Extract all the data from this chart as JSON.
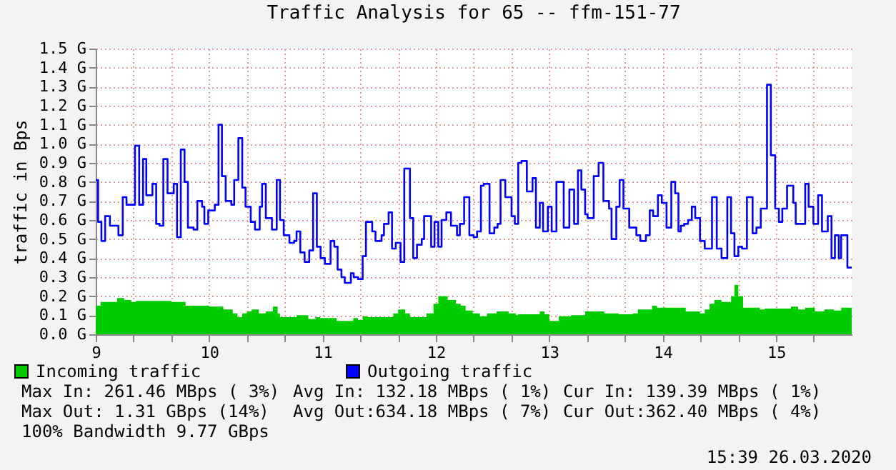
{
  "chart_data": {
    "type": "step",
    "title": "Traffic Analysis for 65 -- ffm-151-77",
    "ylabel": "traffic in Bps",
    "xlim": [
      9,
      15.667
    ],
    "xticks": [
      9,
      {
        "value": 9.333,
        "label": null
      },
      {
        "value": 9.667,
        "label": null
      },
      10,
      {
        "value": 10.333,
        "label": null
      },
      {
        "value": 10.667,
        "label": null
      },
      11,
      {
        "value": 11.333,
        "label": null
      },
      {
        "value": 11.667,
        "label": null
      },
      12,
      {
        "value": 12.333,
        "label": null
      },
      {
        "value": 12.667,
        "label": null
      },
      13,
      {
        "value": 13.333,
        "label": null
      },
      {
        "value": 13.667,
        "label": null
      },
      14,
      {
        "value": 14.333,
        "label": null
      },
      {
        "value": 14.667,
        "label": null
      },
      15,
      {
        "value": 15.333,
        "label": null
      }
    ],
    "ylim": [
      0,
      1.5
    ],
    "yticks": [
      {
        "value": 0,
        "label": "0.0 G"
      },
      {
        "value": 0.1,
        "label": "0.1 G"
      },
      {
        "value": 0.2,
        "label": "0.2 G"
      },
      {
        "value": 0.3,
        "label": "0.3 G"
      },
      {
        "value": 0.4,
        "label": "0.4 G"
      },
      {
        "value": 0.5,
        "label": "0.5 G"
      },
      {
        "value": 0.6,
        "label": "0.6 G"
      },
      {
        "value": 0.7,
        "label": "0.7 G"
      },
      {
        "value": 0.8,
        "label": "0.8 G"
      },
      {
        "value": 0.9,
        "label": "0.9 G"
      },
      {
        "value": 1.0,
        "label": "1.0 G"
      },
      {
        "value": 1.1,
        "label": "1.1 G"
      },
      {
        "value": 1.2,
        "label": "1.2 G"
      },
      {
        "value": 1.3,
        "label": "1.3 G"
      },
      {
        "value": 1.4,
        "label": "1.4 G"
      },
      {
        "value": 1.5,
        "label": "1.5 G"
      }
    ],
    "grid": true,
    "legend": "bottom",
    "series": [
      {
        "name": "Incoming traffic",
        "type": "area",
        "color": "#00cc00",
        "x": [
          9.0,
          9.042,
          9.188,
          9.25,
          9.313,
          9.354,
          9.667,
          9.792,
          10.0,
          10.125,
          10.208,
          10.25,
          10.292,
          10.333,
          10.375,
          10.438,
          10.5,
          10.563,
          10.604,
          10.625,
          10.771,
          10.875,
          10.938,
          10.979,
          11.125,
          11.271,
          11.313,
          11.354,
          11.396,
          11.625,
          11.667,
          11.729,
          11.771,
          11.917,
          11.979,
          12.021,
          12.104,
          12.177,
          12.219,
          12.262,
          12.325,
          12.388,
          12.451,
          12.536,
          12.641,
          12.705,
          12.726,
          12.916,
          12.958,
          13.0,
          13.084,
          13.19,
          13.316,
          13.485,
          13.612,
          13.738,
          13.781,
          13.907,
          13.949,
          14.203,
          14.329,
          14.371,
          14.414,
          14.456,
          14.519,
          14.603,
          14.633,
          14.667,
          14.709,
          14.857,
          14.899,
          15.131,
          15.194,
          15.257,
          15.342,
          15.426,
          15.511,
          15.574,
          15.667
        ],
        "values": [
          0.15,
          0.17,
          0.19,
          0.18,
          0.17,
          0.175,
          0.17,
          0.15,
          0.145,
          0.13,
          0.11,
          0.09,
          0.11,
          0.12,
          0.13,
          0.11,
          0.12,
          0.145,
          0.11,
          0.09,
          0.1,
          0.08,
          0.09,
          0.085,
          0.07,
          0.085,
          0.075,
          0.095,
          0.09,
          0.11,
          0.13,
          0.11,
          0.09,
          0.11,
          0.16,
          0.2,
          0.18,
          0.16,
          0.15,
          0.125,
          0.11,
          0.095,
          0.11,
          0.12,
          0.11,
          0.1,
          0.105,
          0.12,
          0.105,
          0.07,
          0.095,
          0.1,
          0.12,
          0.11,
          0.105,
          0.11,
          0.13,
          0.15,
          0.14,
          0.12,
          0.11,
          0.13,
          0.16,
          0.18,
          0.17,
          0.2,
          0.26,
          0.2,
          0.14,
          0.13,
          0.135,
          0.145,
          0.13,
          0.14,
          0.12,
          0.13,
          0.125,
          0.14,
          0.14
        ]
      },
      {
        "name": "Outgoing traffic",
        "type": "step",
        "color": "#0000ff",
        "x": [
          9.0,
          9.021,
          9.05,
          9.083,
          9.125,
          9.2,
          9.238,
          9.271,
          9.3,
          9.346,
          9.383,
          9.417,
          9.446,
          9.5,
          9.533,
          9.563,
          9.596,
          9.633,
          9.688,
          9.717,
          9.75,
          9.783,
          9.813,
          9.863,
          9.896,
          9.938,
          9.958,
          9.992,
          10.05,
          10.083,
          10.113,
          10.146,
          10.196,
          10.221,
          10.258,
          10.292,
          10.321,
          10.367,
          10.404,
          10.446,
          10.467,
          10.5,
          10.554,
          10.596,
          10.625,
          10.658,
          10.708,
          10.75,
          10.771,
          10.804,
          10.842,
          10.883,
          10.917,
          10.95,
          10.983,
          11.021,
          11.071,
          11.104,
          11.133,
          11.167,
          11.196,
          11.25,
          11.275,
          11.313,
          11.354,
          11.383,
          11.438,
          11.467,
          11.521,
          11.542,
          11.583,
          11.613,
          11.646,
          11.688,
          11.721,
          11.771,
          11.8,
          11.833,
          11.875,
          11.896,
          11.958,
          11.988,
          12.021,
          12.05,
          12.092,
          12.133,
          12.186,
          12.211,
          12.249,
          12.295,
          12.333,
          12.363,
          12.397,
          12.422,
          12.473,
          12.515,
          12.544,
          12.57,
          12.612,
          12.667,
          12.696,
          12.726,
          12.755,
          12.802,
          12.852,
          12.882,
          12.916,
          12.945,
          12.987,
          13.021,
          13.063,
          13.127,
          13.177,
          13.219,
          13.253,
          13.283,
          13.316,
          13.338,
          13.392,
          13.435,
          13.477,
          13.527,
          13.549,
          13.591,
          13.62,
          13.654,
          13.705,
          13.768,
          13.802,
          13.852,
          13.886,
          13.916,
          13.958,
          13.992,
          14.034,
          14.076,
          14.11,
          14.139,
          14.16,
          14.19,
          14.224,
          14.257,
          14.287,
          14.329,
          14.371,
          14.435,
          14.477,
          14.519,
          14.57,
          14.603,
          14.633,
          14.667,
          14.7,
          14.743,
          14.793,
          14.827,
          14.865,
          14.92,
          14.954,
          14.992,
          15.025,
          15.055,
          15.097,
          15.152,
          15.173,
          15.257,
          15.287,
          15.329,
          15.371,
          15.405,
          15.456,
          15.489,
          15.519,
          15.553,
          15.574,
          15.629,
          15.667
        ],
        "values": [
          0.81,
          0.59,
          0.49,
          0.62,
          0.57,
          0.52,
          0.72,
          0.68,
          0.68,
          0.99,
          0.68,
          0.92,
          0.73,
          0.79,
          0.58,
          0.57,
          0.92,
          0.74,
          0.79,
          0.51,
          0.97,
          0.8,
          0.56,
          0.55,
          0.7,
          0.67,
          0.58,
          0.65,
          0.68,
          1.1,
          0.83,
          0.7,
          0.68,
          0.81,
          1.03,
          0.77,
          0.67,
          0.59,
          0.55,
          0.67,
          0.79,
          0.61,
          0.55,
          0.81,
          0.6,
          0.52,
          0.48,
          0.49,
          0.54,
          0.43,
          0.38,
          0.44,
          0.74,
          0.46,
          0.4,
          0.37,
          0.49,
          0.46,
          0.34,
          0.3,
          0.27,
          0.32,
          0.3,
          0.29,
          0.41,
          0.59,
          0.54,
          0.49,
          0.52,
          0.58,
          0.64,
          0.45,
          0.48,
          0.38,
          0.87,
          0.61,
          0.4,
          0.47,
          0.5,
          0.62,
          0.46,
          0.59,
          0.46,
          0.6,
          0.64,
          0.57,
          0.52,
          0.58,
          0.72,
          0.52,
          0.51,
          0.54,
          0.78,
          0.79,
          0.53,
          0.56,
          0.58,
          0.81,
          0.72,
          0.62,
          0.58,
          0.9,
          0.91,
          0.75,
          0.82,
          0.56,
          0.69,
          0.54,
          0.67,
          0.54,
          0.8,
          0.56,
          0.76,
          0.58,
          0.86,
          0.76,
          0.63,
          0.61,
          0.83,
          0.9,
          0.7,
          0.66,
          0.5,
          0.67,
          0.81,
          0.66,
          0.56,
          0.52,
          0.49,
          0.52,
          0.65,
          0.62,
          0.73,
          0.69,
          0.56,
          0.8,
          0.74,
          0.54,
          0.57,
          0.58,
          0.6,
          0.67,
          0.61,
          0.49,
          0.45,
          0.72,
          0.45,
          0.4,
          0.72,
          0.53,
          0.41,
          0.46,
          0.45,
          0.72,
          0.53,
          0.56,
          0.66,
          1.31,
          0.94,
          0.66,
          0.59,
          0.66,
          0.78,
          0.69,
          0.58,
          0.79,
          0.67,
          0.58,
          0.73,
          0.54,
          0.62,
          0.4,
          0.52,
          0.4,
          0.52,
          0.35,
          0.35
        ]
      }
    ],
    "annotations": [
      "Max In: 261.46 MBps ( 3%)",
      "Avg In: 132.18 MBps ( 1%)",
      "Cur In: 139.39 MBps ( 1%)",
      "Max Out: 1.31 GBps (14%)",
      "Avg Out:634.18 MBps ( 7%)",
      "Cur Out:362.40 MBps ( 4%)",
      "100% Bandwidth 9.77 GBps",
      "15:39 26.03.2020"
    ]
  }
}
